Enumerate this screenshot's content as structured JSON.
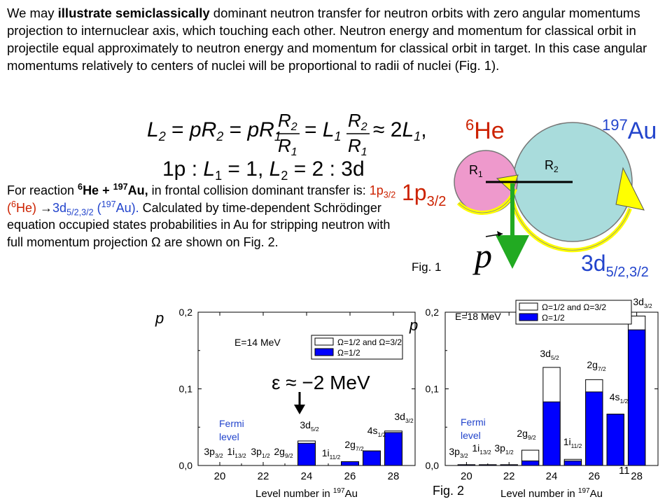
{
  "intro": {
    "p1": "We may ",
    "p2": "illustrate semiclassically",
    "p3": " dominant neutron transfer for neutron orbits  with zero angular momentums projection to internuclear axis, which touching each other. Neutron energy and  momentum for classical orbit in projectile equal approximately to neutron energy and momentum for classical orbit in target. In this case angular momentums relatively to centers of nuclei will be proportional  to radii of nuclei (Fig. 1)."
  },
  "equations": {
    "eq1_left": "L",
    "eq1_sub2": "2",
    "eq2_prefix": "1p",
    "eq2_L1_val": "1,",
    "eq2_L2_val": "2 : 3d"
  },
  "reaction": {
    "t1": "For reaction ",
    "he_mass": "6",
    "he": "He + ",
    "au_mass": "197",
    "au": "Au,",
    "t2": " in frontal collision dominant transfer is: ",
    "from_orb": "1p",
    "from_sub": "3/2",
    "from_nuc_open": " (",
    "from_nuc_mass": "6",
    "from_nuc": "He) ",
    "arrow": "→",
    "to_orb": "3d",
    "to_sub": "5/2,3/2",
    "to_nuc_open": " (",
    "to_nuc_mass": "197",
    "to_nuc": "Au).",
    "t3": " Calculated by time-dependent Schrödinger equation occupied states  probabilities in Au for stripping neutron with full momentum projection ",
    "omega": "Ω",
    "t4": " are shown on Fig. 2."
  },
  "fig1": {
    "he_mass": "6",
    "he": "He",
    "au_mass": "197",
    "au": "Au",
    "r1": "R",
    "r1_sub": "1",
    "r2": "R",
    "r2_sub": "2",
    "orbit_left": "1p",
    "orbit_left_sub": "3/2",
    "orbit_right": "3d",
    "orbit_right_sub": "5/2,3/2",
    "momentum": "p",
    "caption": "Fig. 1",
    "colors": {
      "projectile": "#ee99cc",
      "target": "#a9dcdc",
      "orbit": "#ffff00",
      "momentum": "#22aa22"
    }
  },
  "fig2": {
    "caption": "Fig. 2",
    "page_number": "11",
    "xlabel_text": "Level number in ",
    "xlabel_mass": "197",
    "xlabel_nuc": "Au",
    "ylabel": "p",
    "fermi": [
      "Fermi",
      "level"
    ],
    "epsilon": "ε ≈ −2 MeV",
    "colors": {
      "bar": "#0000ff",
      "total": "#ffffff"
    }
  },
  "chart_data": [
    {
      "type": "bar",
      "title": "E=14 MeV",
      "xlabel": "Level number in 197Au",
      "ylabel": "p",
      "xlim": [
        19,
        29
      ],
      "ylim": [
        0,
        0.2
      ],
      "xticks": [
        "20",
        "22",
        "24",
        "26",
        "28"
      ],
      "yticks": [
        "0,0",
        "0,1",
        "0,2"
      ],
      "x": [
        20,
        21,
        22,
        23,
        24,
        25,
        26,
        27,
        28
      ],
      "categories": [
        "3p3/2",
        "1i13/2",
        "3p1/2",
        "2g9/2",
        "3d5/2",
        "1i11/2",
        "2g7/2",
        "4s1/2",
        "3d3/2"
      ],
      "series": [
        {
          "name": "Ω=1/2 and Ω=3/2",
          "values": [
            0,
            0,
            0,
            0,
            0.032,
            0,
            0.005,
            0.019,
            0.045
          ]
        },
        {
          "name": "Ω=1/2",
          "values": [
            0,
            0,
            0,
            0,
            0.029,
            0,
            0.005,
            0.019,
            0.043
          ]
        }
      ],
      "legend": "top-right"
    },
    {
      "type": "bar",
      "title": "E=18 MeV",
      "xlabel": "Level number in 197Au",
      "ylabel": "p",
      "xlim": [
        19,
        29
      ],
      "ylim": [
        0,
        0.2
      ],
      "xticks": [
        "20",
        "22",
        "24",
        "26",
        "28"
      ],
      "yticks": [
        "0,0",
        "0,1",
        "0,2"
      ],
      "x": [
        20,
        21,
        22,
        23,
        24,
        25,
        26,
        27,
        28
      ],
      "categories": [
        "3p3/2",
        "1i13/2",
        "3p1/2",
        "2g9/2",
        "3d5/2",
        "1i11/2",
        "2g7/2",
        "4s1/2",
        "3d3/2"
      ],
      "series": [
        {
          "name": "Ω=1/2 and Ω=3/2",
          "values": [
            0.001,
            0.001,
            0.001,
            0.02,
            0.128,
            0.008,
            0.112,
            0.067,
            0.195
          ]
        },
        {
          "name": "Ω=1/2",
          "values": [
            0.001,
            0.001,
            0.001,
            0.006,
            0.083,
            0.006,
            0.096,
            0.067,
            0.177
          ]
        }
      ],
      "legend": "top-right"
    }
  ]
}
